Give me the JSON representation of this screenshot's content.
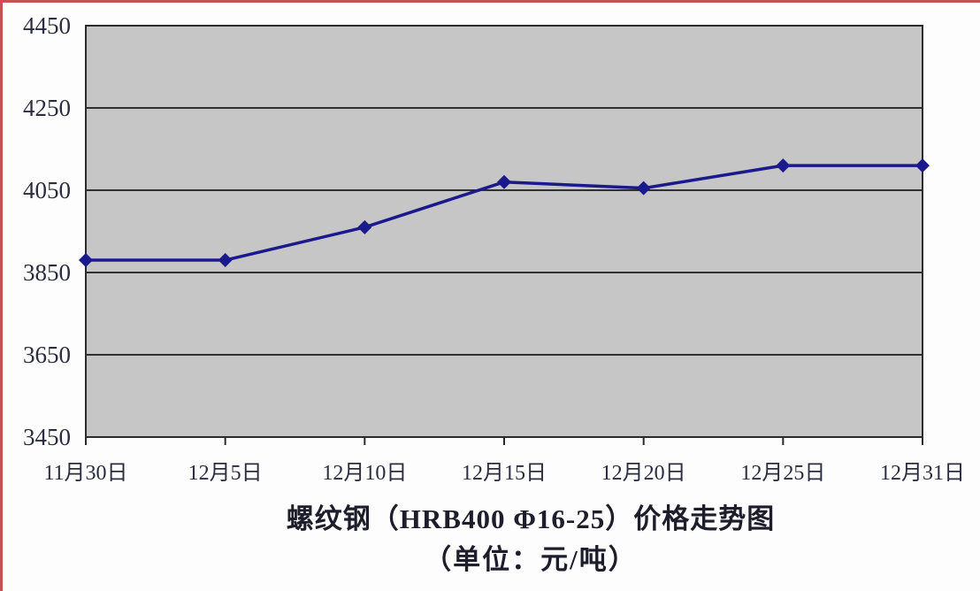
{
  "chart_data": {
    "type": "line",
    "categories": [
      "11月30日",
      "12月5日",
      "12月10日",
      "12月15日",
      "12月20日",
      "12月25日",
      "12月31日"
    ],
    "values": [
      3880,
      3880,
      3960,
      4070,
      4055,
      4110,
      4110
    ],
    "title": "螺纹钢（HRB400 Φ16-25）价格走势图",
    "subtitle": "（单位：元/吨）",
    "xlabel": "",
    "ylabel": "",
    "ylim": [
      3450,
      4450
    ],
    "yticks": [
      3450,
      3650,
      3850,
      4050,
      4250,
      4450
    ],
    "grid": "horizontal",
    "legend": "none",
    "marker": "diamond",
    "colors": {
      "line": "#1a1a8c",
      "marker": "#1a1a8c",
      "plot_fill": "#c6c6c6",
      "plot_border": "#2b2b2b",
      "grid_line": "#1a1a1a",
      "axis_text": "#2c2c40",
      "page_border": "#c4524e",
      "background": "#fdfdfd"
    }
  }
}
